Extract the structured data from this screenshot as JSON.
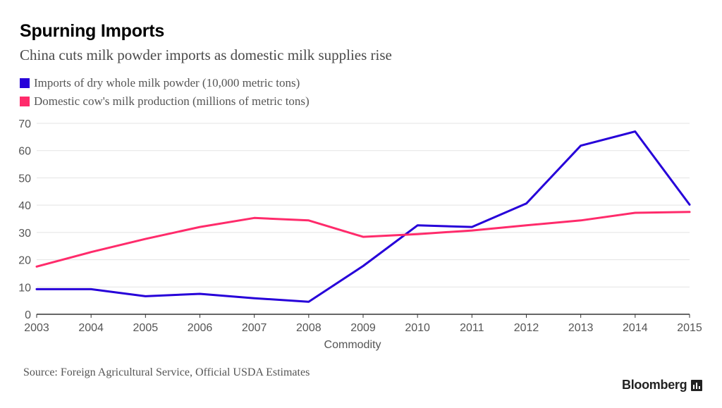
{
  "title": "Spurning Imports",
  "subtitle": "China cuts milk powder imports as domestic milk supplies rise",
  "source": "Source: Foreign Agricultural Service, Official USDA Estimates",
  "brand": "Bloomberg",
  "colors": {
    "imports": "#2600d9",
    "domestic": "#ff2b6b",
    "grid": "#e3e3e3",
    "axis": "#333333",
    "ticks": "#555555"
  },
  "chart_data": {
    "type": "line",
    "title": "Spurning Imports",
    "subtitle": "China cuts milk powder imports as domestic milk supplies rise",
    "xlabel": "Commodity",
    "ylabel": "",
    "x": [
      2003,
      2004,
      2005,
      2006,
      2007,
      2008,
      2009,
      2010,
      2011,
      2012,
      2013,
      2014,
      2015
    ],
    "ylim": [
      0,
      70
    ],
    "yticks": [
      0,
      10,
      20,
      30,
      40,
      50,
      60,
      70
    ],
    "grid": true,
    "legend": "top-left",
    "series": [
      {
        "name": "Imports of dry whole milk powder (10,000 metric tons)",
        "color": "#2600d9",
        "values": [
          9.2,
          9.2,
          6.6,
          7.5,
          5.9,
          4.6,
          17.7,
          32.6,
          32.0,
          40.6,
          61.8,
          67.0,
          40.2
        ]
      },
      {
        "name": "Domestic cow's milk production (millions of metric tons)",
        "color": "#ff2b6b",
        "values": [
          17.5,
          22.8,
          27.6,
          32.0,
          35.3,
          34.4,
          28.4,
          29.4,
          30.7,
          32.6,
          34.4,
          37.2,
          37.5
        ]
      }
    ]
  }
}
